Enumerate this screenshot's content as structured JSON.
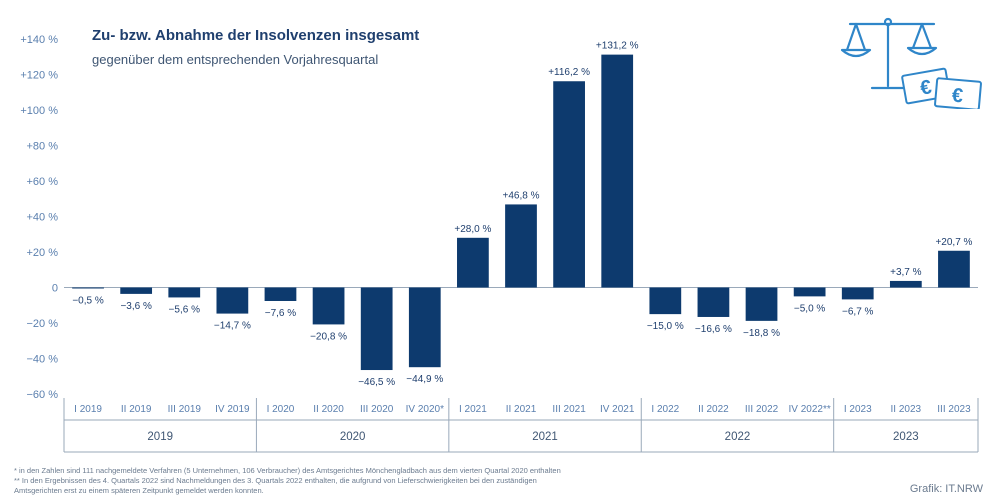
{
  "title": "Zu- bzw. Abnahme der Insolvenzen insgesamt",
  "subtitle": "gegenüber dem entsprechenden Vorjahresquartal",
  "footnotes": [
    "*   in den Zahlen sind 111 nachgemeldete Verfahren (5 Unternehmen, 106 Verbraucher) des Amtsgerichtes Mönchengladbach aus dem vierten Quartal 2020 enthalten",
    "**  In den Ergebnissen des 4. Quartals 2022 sind Nachmeldungen des 3. Quartals 2022 enthalten, die aufgrund von Lieferschwierigkeiten bei den zuständigen",
    "      Amtsgerichten erst zu einem späteren Zeitpunkt gemeldet werden konnten."
  ],
  "credit": "Grafik: IT.NRW",
  "colors": {
    "bar": "#0d3a6e",
    "axis": "#9aa9ba",
    "text": "#1f3f6e",
    "tick": "#5a7fae",
    "logo": "#2f86c9"
  },
  "logo": {
    "icons": [
      "scale-icon",
      "euro-banknote-icon"
    ]
  },
  "chart_data": {
    "type": "bar",
    "ylim": [
      -60,
      140
    ],
    "yticks": [
      -60,
      -40,
      -20,
      0,
      20,
      40,
      60,
      80,
      100,
      120,
      140
    ],
    "ytick_labels": [
      "−60 %",
      "−40 %",
      "−20 %",
      "0",
      "+20 %",
      "+40 %",
      "+60 %",
      "+80 %",
      "+100 %",
      "+120 %",
      "+140 %"
    ],
    "categories": [
      "I 2019",
      "II 2019",
      "III 2019",
      "IV 2019",
      "I 2020",
      "II 2020",
      "III 2020",
      "IV 2020*",
      "I 2021",
      "II 2021",
      "III 2021",
      "IV 2021",
      "I 2022",
      "II 2022",
      "III 2022",
      "IV 2022**",
      "I 2023",
      "II 2023",
      "III 2023"
    ],
    "values": [
      -0.5,
      -3.6,
      -5.6,
      -14.7,
      -7.6,
      -20.8,
      -46.5,
      -44.9,
      28.0,
      46.8,
      116.2,
      131.2,
      -15.0,
      -16.6,
      -18.8,
      -5.0,
      -6.7,
      3.7,
      20.7
    ],
    "value_labels": [
      "−0,5 %",
      "−3,6 %",
      "−5,6 %",
      "−14,7 %",
      "−7,6 %",
      "−20,8 %",
      "−46,5 %",
      "−44,9 %",
      "+28,0 %",
      "+46,8 %",
      "+116,2 %",
      "+131,2 %",
      "−15,0 %",
      "−16,6 %",
      "−18,8 %",
      "−5,0 %",
      "−6,7 %",
      "+3,7 %",
      "+20,7 %"
    ],
    "years": [
      {
        "label": "2019",
        "count": 4
      },
      {
        "label": "2020",
        "count": 4
      },
      {
        "label": "2021",
        "count": 4
      },
      {
        "label": "2022",
        "count": 4
      },
      {
        "label": "2023",
        "count": 3
      }
    ],
    "grid": false
  }
}
